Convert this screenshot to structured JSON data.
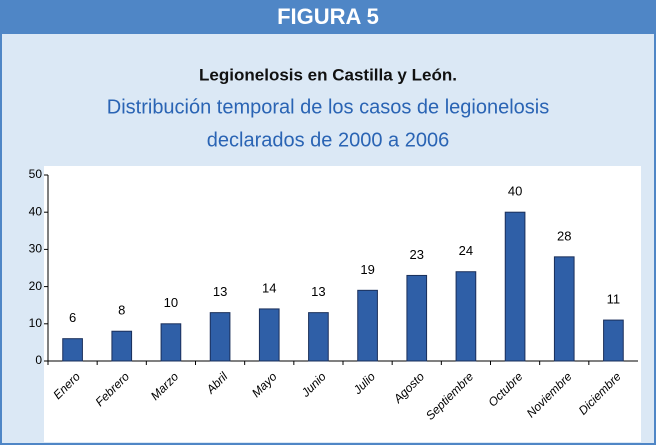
{
  "header": "FIGURA 5",
  "chart_data": {
    "type": "bar",
    "title": "Legionelosis en Castilla y León.",
    "subtitle": [
      "Distribución temporal de los casos de legionelosis",
      "declarados de 2000 a 2006"
    ],
    "categories": [
      "Enero",
      "Febrero",
      "Marzo",
      "Abril",
      "Mayo",
      "Junio",
      "Julio",
      "Agosto",
      "Septiembre",
      "Octubre",
      "Noviembre",
      "Diciembre"
    ],
    "values": [
      6,
      8,
      10,
      13,
      14,
      13,
      19,
      23,
      24,
      40,
      28,
      11
    ],
    "color": "#2f5fa7",
    "ylim": [
      0,
      50
    ],
    "yticks": [
      0,
      10,
      20,
      30,
      40,
      50
    ],
    "grid": false
  }
}
